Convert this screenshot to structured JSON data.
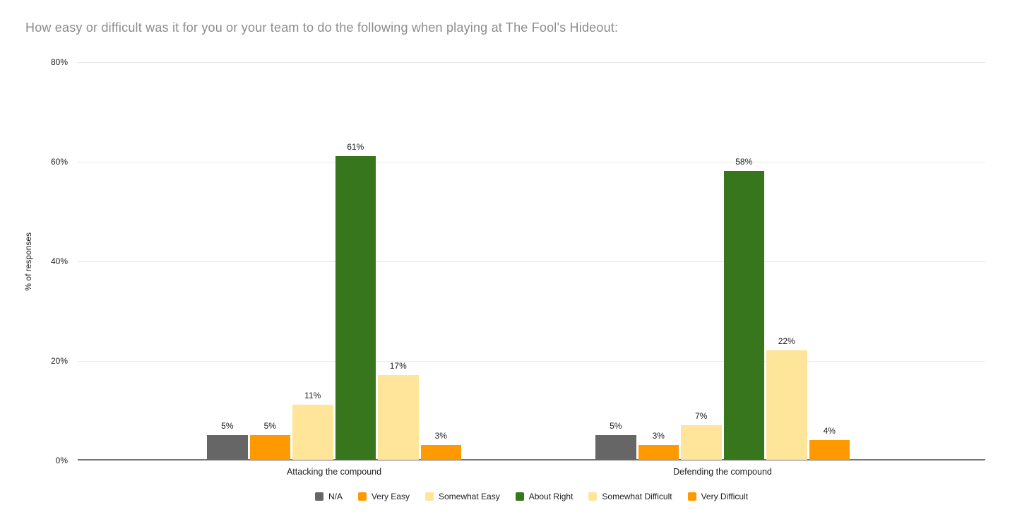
{
  "title": "How easy or difficult was it for you or your team to do the following when playing at The Fool's Hideout:",
  "chart_data": {
    "type": "bar",
    "grouped": true,
    "title": "How easy or difficult was it for you or your team to do the following when playing at The Fool's Hideout:",
    "categories": [
      "Attacking the compound",
      "Defending the compound"
    ],
    "series": [
      {
        "name": "N/A",
        "color": "#666666",
        "values": [
          5,
          5
        ]
      },
      {
        "name": "Very Easy",
        "color": "#ff9900",
        "values": [
          5,
          3
        ]
      },
      {
        "name": "Somewhat Easy",
        "color": "#ffe599",
        "values": [
          11,
          7
        ]
      },
      {
        "name": "About Right",
        "color": "#38761d",
        "values": [
          61,
          58
        ]
      },
      {
        "name": "Somewhat Difficult",
        "color": "#ffe599",
        "values": [
          17,
          22
        ]
      },
      {
        "name": "Very Difficult",
        "color": "#ff9900",
        "values": [
          3,
          4
        ]
      }
    ],
    "data_labels": true,
    "value_suffix": "%",
    "xlabel": "",
    "ylabel": "% of responses",
    "yticks": [
      "0%",
      "20%",
      "40%",
      "60%",
      "80%"
    ],
    "ytick_values": [
      0,
      20,
      40,
      60,
      80
    ],
    "ylim": [
      0,
      80
    ],
    "grid": true,
    "legend_position": "bottom"
  },
  "colors": {
    "background": "#ffffff",
    "title_text": "#8c8c8c",
    "gridline": "#e7e7e7",
    "baseline": "#757575",
    "tick_text": "#212121",
    "label_text": "#212121"
  }
}
